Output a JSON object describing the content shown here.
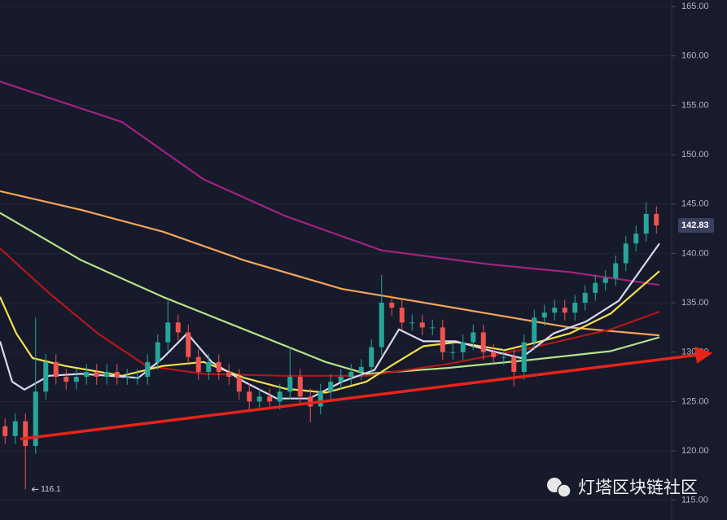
{
  "chart_data": {
    "type": "candlestick",
    "ylim": [
      113,
      165.66
    ],
    "xlim": [
      -0.5,
      65.5
    ],
    "yticks": [
      {
        "value": 115,
        "label": "115.00"
      },
      {
        "value": 120,
        "label": "120.00"
      },
      {
        "value": 125,
        "label": "125.00"
      },
      {
        "value": 130,
        "label": "130.00"
      },
      {
        "value": 135,
        "label": "135.00"
      },
      {
        "value": 140,
        "label": "140.00"
      },
      {
        "value": 145,
        "label": "145.00"
      },
      {
        "value": 150,
        "label": "150.00"
      },
      {
        "value": 155,
        "label": "155.00"
      },
      {
        "value": 160,
        "label": "160.00"
      },
      {
        "value": 165,
        "label": "165.00"
      }
    ],
    "grid": true,
    "up_color": "#26a69a",
    "down_color": "#ef5350",
    "open": [
      122.5,
      121.5,
      123,
      120.5,
      126,
      129,
      127.5,
      127,
      127.5,
      128,
      127.5,
      128,
      127.5,
      127.5,
      127.5,
      129,
      131,
      133,
      132,
      129.5,
      128,
      129,
      128,
      127.5,
      126,
      125,
      125.5,
      125,
      126,
      127.5,
      125.5,
      124.5,
      126,
      127,
      127.5,
      128,
      128.5,
      130.5,
      135,
      134.5,
      133,
      133,
      132.5,
      132.5,
      130,
      130,
      131,
      132,
      130,
      129.5,
      129.5,
      128,
      131,
      133.5,
      134,
      134.5,
      134,
      135,
      136,
      137,
      137.5,
      139,
      141,
      142,
      144
    ],
    "high": [
      123.3,
      123.8,
      123.8,
      133.5,
      129.8,
      129.8,
      128.3,
      128.3,
      128.8,
      128.8,
      128.8,
      128.8,
      128.3,
      128.3,
      129.8,
      131.8,
      135.2,
      133.8,
      132.8,
      130.3,
      129.8,
      129.8,
      128.8,
      128.3,
      126.8,
      126.3,
      126.3,
      126.8,
      130.5,
      128.3,
      126.3,
      126.8,
      127.8,
      128.3,
      128.8,
      129.3,
      131.3,
      137.8,
      135.8,
      135.3,
      133.8,
      133.8,
      133.3,
      133.3,
      130.8,
      131.8,
      132.8,
      132.8,
      130.8,
      130.3,
      130.3,
      131.8,
      134.3,
      134.8,
      135.3,
      135.3,
      135.8,
      136.8,
      137.8,
      138.3,
      139.8,
      141.8,
      142.8,
      145.2,
      144.8
    ],
    "low": [
      120.7,
      120.7,
      116.1,
      119.7,
      125.2,
      126.7,
      126.2,
      126.2,
      126.7,
      126.7,
      126.7,
      126.7,
      126.7,
      126.7,
      126.7,
      128.2,
      130.2,
      131.2,
      128.7,
      127.2,
      127.2,
      127.2,
      126.7,
      125.2,
      124.2,
      124.2,
      124.2,
      124.2,
      125.2,
      124.7,
      122.9,
      123.7,
      125.2,
      126.2,
      126.7,
      127.2,
      127.7,
      129.7,
      133.7,
      132.2,
      132.2,
      131.7,
      131.7,
      129.2,
      129.2,
      129.2,
      130.2,
      129.2,
      128.7,
      128.7,
      126.5,
      127.2,
      130.2,
      132.7,
      133.2,
      133.2,
      133.2,
      134.2,
      135.2,
      136.2,
      136.7,
      138.2,
      140.2,
      141.2,
      142.0
    ],
    "close": [
      121.5,
      123,
      120.5,
      126,
      129,
      127.5,
      127,
      127.5,
      128,
      127.5,
      128,
      127.5,
      127.5,
      127.5,
      129,
      131,
      133,
      132,
      129.5,
      128,
      129,
      128,
      127.5,
      126,
      125,
      125.5,
      125,
      126,
      127.5,
      125.5,
      124.5,
      126,
      127,
      127.5,
      128,
      128.5,
      130.5,
      135,
      134.5,
      133,
      133,
      132.5,
      132.5,
      130,
      130,
      131,
      132,
      130,
      129.5,
      129.5,
      128,
      131,
      133.5,
      134,
      134.5,
      134,
      135,
      136,
      137,
      137.5,
      139,
      141,
      142,
      144,
      142.83
    ],
    "series": [
      {
        "color": "#a3237f",
        "x": [
          -0.5,
          11.5,
          19.5,
          27.5,
          37,
          47.5,
          55.5,
          64.3
        ],
        "values": [
          157.4,
          153.3,
          147.5,
          143.8,
          140.3,
          138.9,
          138.1,
          136.8
        ]
      },
      {
        "color": "#f5a55a",
        "x": [
          -0.5,
          7.5,
          15.5,
          23.5,
          33.1,
          39.5,
          47.5,
          55.5,
          64.3
        ],
        "values": [
          146.3,
          144.4,
          142.2,
          139.3,
          136.4,
          135.3,
          133.9,
          132.5,
          131.7
        ]
      },
      {
        "color": "#b5e28a",
        "x": [
          -0.5,
          7.5,
          15.5,
          23.5,
          31.5,
          35.5,
          43.5,
          51.5,
          59.5,
          64.3
        ],
        "values": [
          144.1,
          139.3,
          135.6,
          132.3,
          129.0,
          127.8,
          128.4,
          129.2,
          130.1,
          131.5
        ]
      },
      {
        "color": "#b5161c",
        "x": [
          -0.5,
          4.3,
          9.1,
          13.9,
          19.5,
          27.5,
          35.5,
          43.5,
          51.5,
          59.5,
          64.3
        ],
        "values": [
          140.5,
          136.0,
          131.9,
          128.6,
          127.8,
          127.6,
          127.6,
          128.8,
          130.4,
          132.3,
          134.1
        ]
      },
      {
        "color": "#f4e04a",
        "x": [
          -0.5,
          1.1,
          2.7,
          5.9,
          11.5,
          15.5,
          19.5,
          23.5,
          27.5,
          31.5,
          35.5,
          37.9,
          41.1,
          44.3,
          49.1,
          52.3,
          55.5,
          59.5,
          64.3
        ],
        "values": [
          135.6,
          131.9,
          129.4,
          128.6,
          127.6,
          128.6,
          129.0,
          127.4,
          126.3,
          125.9,
          127.0,
          128.6,
          130.6,
          131.0,
          130.2,
          131.0,
          131.9,
          133.9,
          138.2
        ]
      },
      {
        "color": "#d8d8f0",
        "x": [
          -0.5,
          0.7,
          1.9,
          4.3,
          7.5,
          13.1,
          15.5,
          17.9,
          20.3,
          23.5,
          26.7,
          29.9,
          33.1,
          36.3,
          38.7,
          41.1,
          44.3,
          47.5,
          50.7,
          53.9,
          57.1,
          60.3,
          64.3
        ],
        "values": [
          131.1,
          127.0,
          126.2,
          127.6,
          127.8,
          127.4,
          129.4,
          131.9,
          129.0,
          127.0,
          125.3,
          125.3,
          127.0,
          128.2,
          132.3,
          131.1,
          131.1,
          130.2,
          129.4,
          131.9,
          133.1,
          135.2,
          141.0
        ]
      }
    ],
    "trendline": {
      "color": "#e8231a",
      "x": [
        1.5,
        68.7
      ],
      "values": [
        121.2,
        129.8
      ]
    },
    "watermark": "灯塔区块链社区"
  }
}
